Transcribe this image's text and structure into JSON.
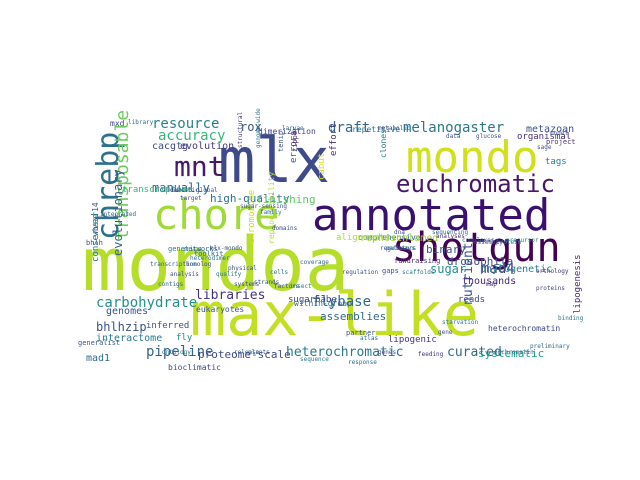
{
  "words": [
    {
      "text": "mondoa",
      "color": "#b5de2b"
    },
    {
      "text": "max-like",
      "color": "#c2df23"
    },
    {
      "text": "mlx",
      "color": "#3e4a89"
    },
    {
      "text": "annotated",
      "color": "#3b0f70"
    },
    {
      "text": "mondo",
      "color": "#d0e11c"
    },
    {
      "text": "shotgun",
      "color": "#440154"
    },
    {
      "text": "chore",
      "color": "#a0da39"
    },
    {
      "text": "euchromatic",
      "color": "#481668"
    },
    {
      "text": "mnt",
      "color": "#481769"
    },
    {
      "text": "chrebp",
      "color": "#2d708e"
    },
    {
      "text": "transposable",
      "color": "#6ccd5a"
    },
    {
      "text": "melanogaster",
      "color": "#2a788e"
    },
    {
      "text": "draft",
      "color": "#31688e"
    },
    {
      "text": "resource",
      "color": "#26828e"
    },
    {
      "text": "rox",
      "color": "#3b528b"
    },
    {
      "text": "accuracy",
      "color": "#35b779"
    },
    {
      "text": "cacgtg",
      "color": "#3e4989"
    },
    {
      "text": "evolution",
      "color": "#443983"
    },
    {
      "text": "manually",
      "color": "#31688e"
    },
    {
      "text": "evolutionary",
      "color": "#365c8d"
    },
    {
      "text": "high-quality",
      "color": "#2c728e"
    },
    {
      "text": "finishing",
      "color": "#5ec962"
    },
    {
      "text": "errors",
      "color": "#3b528b"
    },
    {
      "text": "effort",
      "color": "#46327e"
    },
    {
      "text": "drosophila",
      "color": "#3b528b"
    },
    {
      "text": "binary",
      "color": "#3b528b"
    },
    {
      "text": "metazoan",
      "color": "#3b528b"
    },
    {
      "text": "organismal",
      "color": "#46327e"
    },
    {
      "text": "tags",
      "color": "#287c8e"
    },
    {
      "text": "project",
      "color": "#46327e"
    },
    {
      "text": "sugar",
      "color": "#21918c"
    },
    {
      "text": "mad4",
      "color": "#3e4989"
    },
    {
      "text": "nutrient",
      "color": "#3b528b"
    },
    {
      "text": "phylogenetic",
      "color": "#277f8e"
    },
    {
      "text": "thousands",
      "color": "#472d7b"
    },
    {
      "text": "carbohydrate",
      "color": "#21918c"
    },
    {
      "text": "libraries",
      "color": "#46327e"
    },
    {
      "text": "flybase",
      "color": "#31688e"
    },
    {
      "text": "genomes",
      "color": "#3b528b"
    },
    {
      "text": "bhlhzip",
      "color": "#3b528b"
    },
    {
      "text": "assemblies",
      "color": "#31688e"
    },
    {
      "text": "lipogenic",
      "color": "#46337f"
    },
    {
      "text": "reads",
      "color": "#3b528b"
    },
    {
      "text": "pipeline",
      "color": "#33638d"
    },
    {
      "text": "proteome-scale",
      "color": "#3e4989"
    },
    {
      "text": "heterochromatic",
      "color": "#2a788e"
    },
    {
      "text": "curated",
      "color": "#31688e"
    },
    {
      "text": "systematic",
      "color": "#1f9e89"
    },
    {
      "text": "lipogenesis",
      "color": "#472d7b"
    },
    {
      "text": "interactome",
      "color": "#2a788e"
    },
    {
      "text": "mad1",
      "color": "#31688e"
    },
    {
      "text": "sugarbabe",
      "color": "#3e4989"
    },
    {
      "text": "inferred",
      "color": "#3b528b"
    },
    {
      "text": "fly",
      "color": "#21918c"
    },
    {
      "text": "eukaryotes",
      "color": "#3b528b"
    },
    {
      "text": "wbscr14",
      "color": "#3b528b"
    },
    {
      "text": "clones",
      "color": "#2a788e"
    },
    {
      "text": "comprehensive",
      "color": "#31688e"
    },
    {
      "text": "rephoschlamed",
      "color": "#9fda3a"
    },
    {
      "text": "reproducibility",
      "color": "#b5de2b"
    },
    {
      "text": "chromosome",
      "color": "#cae11f"
    },
    {
      "text": "cabut",
      "color": "#d8e219"
    },
    {
      "text": "alignments",
      "color": "#addc30"
    },
    {
      "text": "heterochromatin",
      "color": "#3e4989"
    },
    {
      "text": "networks",
      "color": "#31688e"
    },
    {
      "text": "genetics",
      "color": "#2a788e"
    },
    {
      "text": "tenip",
      "color": "#3b528b"
    },
    {
      "text": "zipper",
      "color": "#472d7b"
    },
    {
      "text": "dimerization",
      "color": "#414487"
    },
    {
      "text": "repetitive",
      "color": "#2c728e"
    },
    {
      "text": "metabolic",
      "color": "#3e4989"
    },
    {
      "text": "within-group",
      "color": "#31688e"
    },
    {
      "text": "fundraising",
      "color": "#46327e"
    },
    {
      "text": "gaps",
      "color": "#3b528b"
    },
    {
      "text": "partner",
      "color": "#3b528b"
    },
    {
      "text": "atlas",
      "color": "#31688e"
    },
    {
      "text": "ontology",
      "color": "#2a788e"
    },
    {
      "text": "bioclimatic",
      "color": "#3e4989"
    },
    {
      "text": "transcriptome",
      "color": "#35b779"
    },
    {
      "text": "generalist",
      "color": "#3b528b"
    },
    {
      "text": "conserved",
      "color": "#2a788e"
    },
    {
      "text": "toolkit",
      "color": "#31688e"
    },
    {
      "text": "bhlh",
      "color": "#3b528b"
    },
    {
      "text": "scaffolds",
      "color": "#2a788e"
    },
    {
      "text": "mxd",
      "color": "#3e4989"
    },
    {
      "text": "library",
      "color": "#31688e"
    },
    {
      "text": "domestic",
      "color": "#3b528b"
    },
    {
      "text": "global",
      "color": "#3b528b"
    },
    {
      "text": "structural",
      "color": "#46327e"
    },
    {
      "text": "genome-wide",
      "color": "#2a788e"
    },
    {
      "text": "integrated",
      "color": "#31688e"
    },
    {
      "text": "domains",
      "color": "#3b528b"
    },
    {
      "text": "heterodimer",
      "color": "#2a788e"
    },
    {
      "text": "homolog",
      "color": "#3e4989"
    },
    {
      "text": "regulators",
      "color": "#3b528b"
    },
    {
      "text": "sequencing",
      "color": "#31688e"
    },
    {
      "text": "complexes",
      "color": "#3b528b"
    },
    {
      "text": "precursor",
      "color": "#2a788e"
    },
    {
      "text": "analyses",
      "color": "#46327e"
    },
    {
      "text": "target",
      "color": "#3b528b"
    },
    {
      "text": "transcription",
      "color": "#31688e"
    },
    {
      "text": "factors",
      "color": "#3b528b"
    },
    {
      "text": "insect",
      "color": "#2a788e"
    },
    {
      "text": "systems",
      "color": "#3e4989"
    },
    {
      "text": "strands",
      "color": "#3b528b"
    },
    {
      "text": "coverage",
      "color": "#31688e"
    },
    {
      "text": "assembly",
      "color": "#3b528b"
    },
    {
      "text": "protein",
      "color": "#2a788e"
    },
    {
      "text": "orthology",
      "color": "#46327e"
    },
    {
      "text": "sage",
      "color": "#3b528b"
    },
    {
      "text": "larvae",
      "color": "#31688e"
    },
    {
      "text": "data",
      "color": "#3b528b"
    },
    {
      "text": "family",
      "color": "#2a788e"
    },
    {
      "text": "mlx-mondo",
      "color": "#3b528b"
    },
    {
      "text": "release",
      "color": "#31688e"
    },
    {
      "text": "genes",
      "color": "#3e4989"
    },
    {
      "text": "plants",
      "color": "#3b528b"
    },
    {
      "text": "sequence",
      "color": "#2a788e"
    },
    {
      "text": "euchromatin",
      "color": "#31688e"
    },
    {
      "text": "physical",
      "color": "#3b528b"
    },
    {
      "text": "map",
      "color": "#46327e"
    },
    {
      "text": "analysis",
      "color": "#3b528b"
    },
    {
      "text": "contigs",
      "color": "#31688e"
    },
    {
      "text": "quality",
      "color": "#2a788e"
    },
    {
      "text": "gene",
      "color": "#3b528b"
    },
    {
      "text": "proteins",
      "color": "#3e4989"
    },
    {
      "text": "pathways",
      "color": "#31688e"
    },
    {
      "text": "regulation",
      "color": "#3b528b"
    },
    {
      "text": "cells",
      "color": "#2a788e"
    },
    {
      "text": "sugar-sensing",
      "color": "#3b528b"
    },
    {
      "text": "response",
      "color": "#31688e"
    },
    {
      "text": "dna",
      "color": "#3b528b"
    },
    {
      "text": "feeding",
      "color": "#46327e"
    },
    {
      "text": "starvation",
      "color": "#2a788e"
    },
    {
      "text": "glucose",
      "color": "#3b528b"
    },
    {
      "text": "preliminary",
      "color": "#31688e"
    },
    {
      "text": "model",
      "color": "#3b528b"
    },
    {
      "text": "binding",
      "color": "#2a788e"
    }
  ]
}
